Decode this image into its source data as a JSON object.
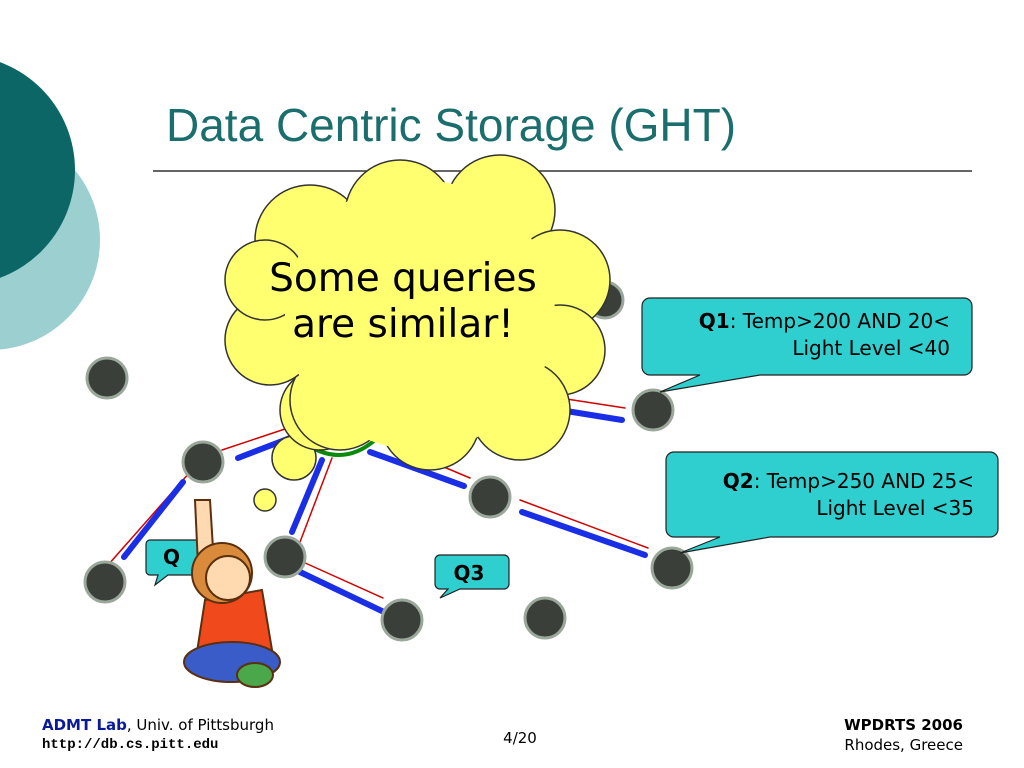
{
  "slide": {
    "title": "Data Centric Storage (GHT)",
    "thought": "Some queries are similar!",
    "callouts": [
      {
        "label": "Q1",
        "text": ": Temp>200 AND 20< Light Level <40"
      },
      {
        "label": "Q2",
        "text": ": Temp>250 AND 25< Light Level <35"
      },
      {
        "label": "Q3"
      },
      {
        "label": "Q"
      }
    ],
    "footer": {
      "lab": "ADMT Lab",
      "university": ", Univ. of Pittsburgh",
      "url": "http://db.cs.pitt.edu",
      "page": "4/20",
      "conference": "WPDRTS 2006",
      "location": "Rhodes, Greece"
    }
  }
}
